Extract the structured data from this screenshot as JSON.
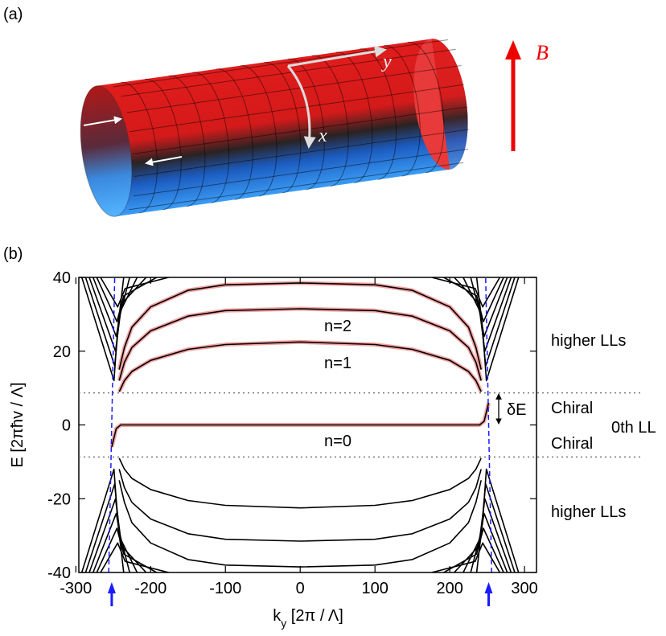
{
  "panel_a": {
    "label": "(a)",
    "axis_y": "y",
    "axis_x": "x",
    "field": "B"
  },
  "chart_data": {
    "type": "line",
    "panel_label": "(b)",
    "xlabel": {
      "main": "k",
      "sub": "y",
      "rest": "  [2π / Λ]"
    },
    "ylabel": "E  [2πħv / Λ]",
    "xlim": [
      -296,
      316
    ],
    "ylim": [
      -40,
      40
    ],
    "xticks": [
      -300,
      -200,
      -100,
      0,
      100,
      200,
      300
    ],
    "yticks": [
      -40,
      -20,
      0,
      20,
      40
    ],
    "highlight_color": "#f4a3a3",
    "hlines": [
      8.7,
      -8.7
    ],
    "arrows_x": [
      -252,
      252
    ],
    "arrow_color": "#1a1aff",
    "annotations": [
      "n=2",
      "n=1",
      "n=0",
      "higher LLs",
      "Chiral",
      "0th LL",
      "Chiral",
      "higher LLs",
      "δE"
    ],
    "series": [
      {
        "color": "#000000",
        "highlight": true,
        "x": [
          -252,
          -246,
          -240,
          -200,
          0,
          200,
          240,
          246,
          252
        ],
        "values": [
          -6,
          -1,
          0,
          0,
          0,
          0,
          0,
          1,
          6
        ]
      },
      {
        "color": "#000000",
        "highlight": true,
        "x": [
          -242,
          -235,
          -225,
          -200,
          -150,
          -100,
          0,
          100,
          150,
          200,
          225,
          235,
          242
        ],
        "values": [
          9,
          12,
          14.5,
          17.5,
          20.5,
          21.8,
          22.5,
          21.8,
          20.5,
          17.5,
          14.5,
          12,
          9
        ]
      },
      {
        "color": "#000000",
        "highlight": true,
        "x": [
          -242,
          -235,
          -225,
          -200,
          -150,
          -100,
          0,
          100,
          150,
          200,
          225,
          235,
          242
        ],
        "values": [
          12,
          17,
          21,
          25.5,
          29.5,
          31,
          31.5,
          31,
          29.5,
          25.5,
          21,
          17,
          12
        ]
      },
      {
        "color": "#000000",
        "highlight": true,
        "x": [
          -242,
          -235,
          -225,
          -200,
          -150,
          -100,
          0,
          100,
          150,
          200,
          225,
          235,
          242
        ],
        "values": [
          15,
          21,
          26.5,
          32,
          36.5,
          38,
          38.5,
          38,
          36.5,
          32,
          26.5,
          21,
          15
        ]
      },
      {
        "color": "#000000",
        "x": [
          -242,
          -235,
          -225,
          -200,
          -150,
          -100,
          0,
          100,
          150,
          200,
          225,
          235,
          242
        ],
        "values": [
          -9,
          -12,
          -14.5,
          -17.5,
          -20.5,
          -21.8,
          -22.5,
          -21.8,
          -20.5,
          -17.5,
          -14.5,
          -12,
          -9
        ]
      },
      {
        "color": "#000000",
        "x": [
          -242,
          -235,
          -225,
          -200,
          -150,
          -100,
          0,
          100,
          150,
          200,
          225,
          235,
          242
        ],
        "values": [
          -12,
          -17,
          -21,
          -25.5,
          -29.5,
          -31,
          -31.5,
          -31,
          -29.5,
          -25.5,
          -21,
          -17,
          -12
        ]
      },
      {
        "color": "#000000",
        "x": [
          -242,
          -235,
          -225,
          -200,
          -150,
          -100,
          0,
          100,
          150,
          200,
          225,
          235,
          242
        ],
        "values": [
          -15,
          -21,
          -26.5,
          -32,
          -36.5,
          -38,
          -38.5,
          -38,
          -36.5,
          -32,
          -26.5,
          -21,
          -15
        ]
      },
      {
        "color": "#000000",
        "x": [
          -292,
          -249,
          -244,
          -236
        ],
        "values": [
          40,
          12,
          26,
          40
        ]
      },
      {
        "color": "#000000",
        "x": [
          -287,
          -248,
          -242,
          -228
        ],
        "values": [
          40,
          16,
          29,
          40
        ]
      },
      {
        "color": "#000000",
        "x": [
          -282,
          -247,
          -240,
          -218
        ],
        "values": [
          40,
          20,
          31,
          40
        ]
      },
      {
        "color": "#000000",
        "x": [
          -277,
          -246,
          -238,
          -206
        ],
        "values": [
          40,
          24,
          33,
          40
        ]
      },
      {
        "color": "#000000",
        "x": [
          -272,
          -245,
          -236,
          -192
        ],
        "values": [
          40,
          28,
          35,
          40
        ]
      },
      {
        "color": "#000000",
        "x": [
          -267,
          -244,
          -234,
          -176
        ],
        "values": [
          40,
          32,
          37,
          40
        ]
      },
      {
        "color": "#000000",
        "x": [
          292,
          249,
          244,
          236
        ],
        "values": [
          40,
          12,
          26,
          40
        ]
      },
      {
        "color": "#000000",
        "x": [
          287,
          248,
          242,
          228
        ],
        "values": [
          40,
          16,
          29,
          40
        ]
      },
      {
        "color": "#000000",
        "x": [
          282,
          247,
          240,
          218
        ],
        "values": [
          40,
          20,
          31,
          40
        ]
      },
      {
        "color": "#000000",
        "x": [
          277,
          246,
          238,
          206
        ],
        "values": [
          40,
          24,
          33,
          40
        ]
      },
      {
        "color": "#000000",
        "x": [
          272,
          245,
          236,
          192
        ],
        "values": [
          40,
          28,
          35,
          40
        ]
      },
      {
        "color": "#000000",
        "x": [
          267,
          244,
          234,
          176
        ],
        "values": [
          40,
          32,
          37,
          40
        ]
      },
      {
        "color": "#000000",
        "x": [
          -292,
          -249,
          -244,
          -236
        ],
        "values": [
          -40,
          -12,
          -26,
          -40
        ]
      },
      {
        "color": "#000000",
        "x": [
          -287,
          -248,
          -242,
          -228
        ],
        "values": [
          -40,
          -16,
          -29,
          -40
        ]
      },
      {
        "color": "#000000",
        "x": [
          -282,
          -247,
          -240,
          -218
        ],
        "values": [
          -40,
          -20,
          -31,
          -40
        ]
      },
      {
        "color": "#000000",
        "x": [
          -277,
          -246,
          -238,
          -206
        ],
        "values": [
          -40,
          -24,
          -33,
          -40
        ]
      },
      {
        "color": "#000000",
        "x": [
          -272,
          -245,
          -236,
          -192
        ],
        "values": [
          -40,
          -28,
          -35,
          -40
        ]
      },
      {
        "color": "#000000",
        "x": [
          -267,
          -244,
          -234,
          -176
        ],
        "values": [
          -40,
          -32,
          -37,
          -40
        ]
      },
      {
        "color": "#000000",
        "x": [
          292,
          249,
          244,
          236
        ],
        "values": [
          -40,
          -12,
          -26,
          -40
        ]
      },
      {
        "color": "#000000",
        "x": [
          287,
          248,
          242,
          228
        ],
        "values": [
          -40,
          -16,
          -29,
          -40
        ]
      },
      {
        "color": "#000000",
        "x": [
          282,
          247,
          240,
          218
        ],
        "values": [
          -40,
          -20,
          -31,
          -40
        ]
      },
      {
        "color": "#000000",
        "x": [
          277,
          246,
          238,
          206
        ],
        "values": [
          -40,
          -24,
          -33,
          -40
        ]
      },
      {
        "color": "#000000",
        "x": [
          272,
          245,
          236,
          192
        ],
        "values": [
          -40,
          -28,
          -35,
          -40
        ]
      },
      {
        "color": "#000000",
        "x": [
          267,
          244,
          234,
          176
        ],
        "values": [
          -40,
          -32,
          -37,
          -40
        ]
      },
      {
        "color": "#1a1aff",
        "dash": true,
        "x": [
          -256,
          -248
        ],
        "values": [
          -40,
          40
        ]
      },
      {
        "color": "#1a1aff",
        "dash": true,
        "x": [
          256,
          248
        ],
        "values": [
          -40,
          40
        ]
      }
    ]
  }
}
